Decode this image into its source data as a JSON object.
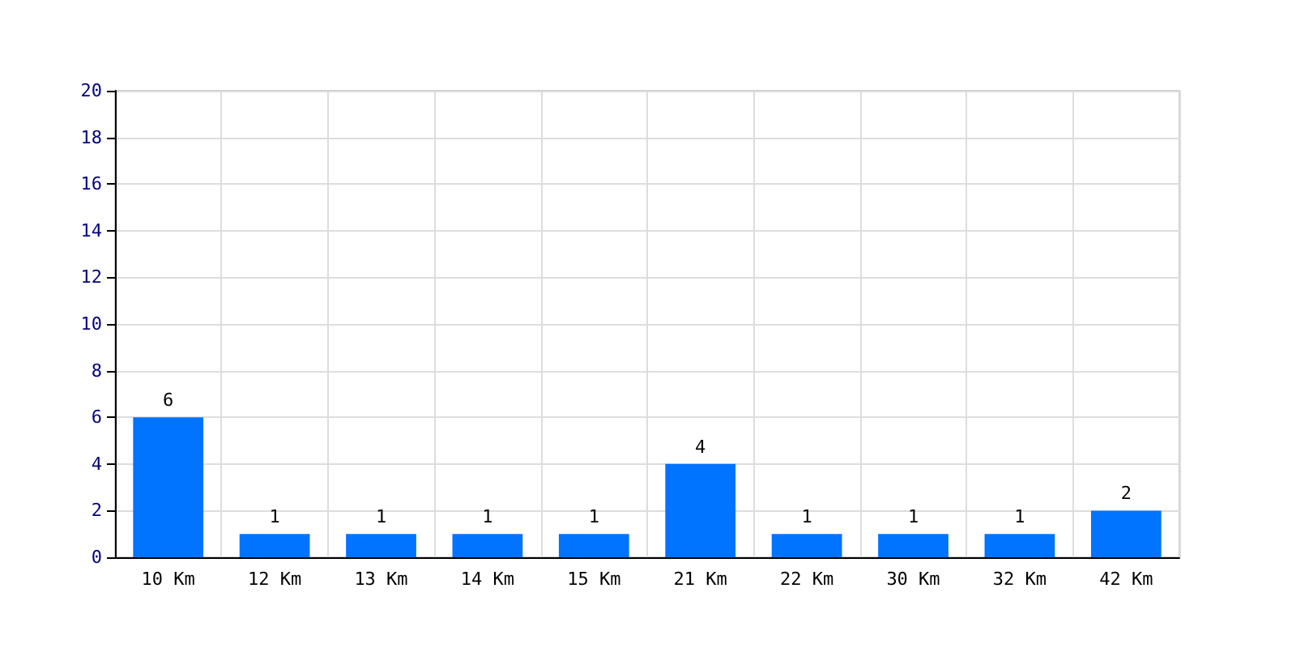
{
  "chart_data": {
    "type": "bar",
    "categories": [
      "10 Km",
      "12 Km",
      "13 Km",
      "14 Km",
      "15 Km",
      "21 Km",
      "22 Km",
      "30 Km",
      "32 Km",
      "42 Km"
    ],
    "values": [
      6,
      1,
      1,
      1,
      1,
      4,
      1,
      1,
      1,
      2
    ],
    "color": "#0073ff",
    "ylim": [
      0,
      20
    ],
    "yticks": [
      0,
      2,
      4,
      6,
      8,
      10,
      12,
      14,
      16,
      18,
      20
    ],
    "grid": true,
    "data_labels": true
  }
}
